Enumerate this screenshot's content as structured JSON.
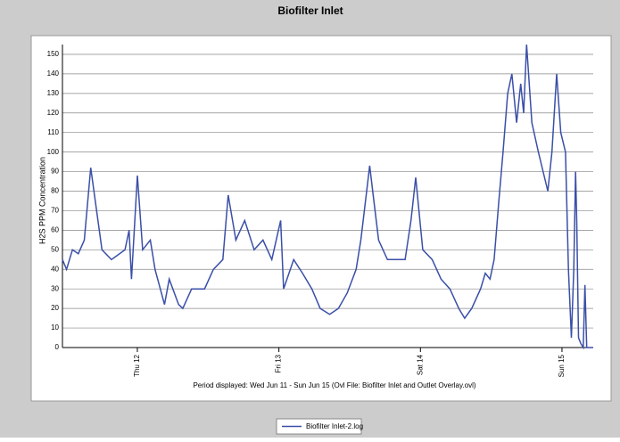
{
  "chart_data": {
    "type": "line",
    "title": "Biofilter Inlet",
    "ylabel": "H2S PPM Concentration",
    "xlabel": "Period displayed: Wed Jun 11 - Sun Jun 15 (Ovl File: Biofilter Inlet and Outlet Overlay.ovl)",
    "xlim": [
      11.3,
      101.3
    ],
    "xticks": [
      {
        "value": 24,
        "label": "Thu 12"
      },
      {
        "value": 48,
        "label": "Fri 13"
      },
      {
        "value": 72,
        "label": "Sat 14"
      },
      {
        "value": 96,
        "label": "Sun 15"
      }
    ],
    "ylim": [
      0,
      155
    ],
    "yticks": [
      0,
      10,
      20,
      30,
      40,
      50,
      60,
      70,
      80,
      90,
      100,
      110,
      120,
      130,
      140,
      150
    ],
    "grid": true,
    "legend": "bottom",
    "series": [
      {
        "name": "Biofilter Inlet-2.log",
        "color": "#3a4fa8",
        "x": [
          11.3,
          12,
          13,
          14,
          15,
          16.1,
          17,
          18,
          19.6,
          21.9,
          22.6,
          23,
          24,
          24.9,
          26.2,
          27,
          27.9,
          28.6,
          29.4,
          31,
          31.7,
          33.2,
          35.4,
          36.9,
          38.5,
          39.4,
          40.7,
          42.2,
          43.8,
          45.3,
          46.8,
          48.3,
          48.8,
          50.5,
          52,
          53.6,
          55,
          56.6,
          58.1,
          59.6,
          61.1,
          61.9,
          63.4,
          64.1,
          64.9,
          66.4,
          69.4,
          70.4,
          71.2,
          72.4,
          74,
          75.5,
          77,
          78.5,
          79.5,
          80.7,
          82.2,
          83,
          83.8,
          84.5,
          85.3,
          86,
          86.8,
          87.5,
          88.3,
          89,
          89.5,
          90,
          90.9,
          92,
          93.6,
          94.3,
          95.1,
          95.8,
          96.6,
          97.1,
          97.6,
          98,
          98.3,
          98.5,
          98.8,
          99.2,
          99.6,
          99.9,
          100.2,
          101.3
        ],
        "values": [
          45,
          40,
          50,
          48,
          55,
          92,
          72,
          50,
          45,
          50,
          60,
          35,
          88,
          50,
          55,
          40,
          30,
          22,
          35,
          22,
          20,
          30,
          30,
          40,
          45,
          78,
          55,
          65,
          50,
          55,
          45,
          65,
          30,
          45,
          38,
          30,
          20,
          17,
          20,
          28,
          40,
          55,
          93,
          75,
          55,
          45,
          45,
          65,
          87,
          50,
          45,
          35,
          30,
          20,
          15,
          20,
          30,
          38,
          35,
          45,
          75,
          100,
          130,
          140,
          115,
          135,
          120,
          155,
          115,
          100,
          80,
          100,
          140,
          110,
          100,
          40,
          5,
          40,
          90,
          65,
          5,
          2,
          0,
          32,
          0,
          0
        ]
      }
    ]
  }
}
